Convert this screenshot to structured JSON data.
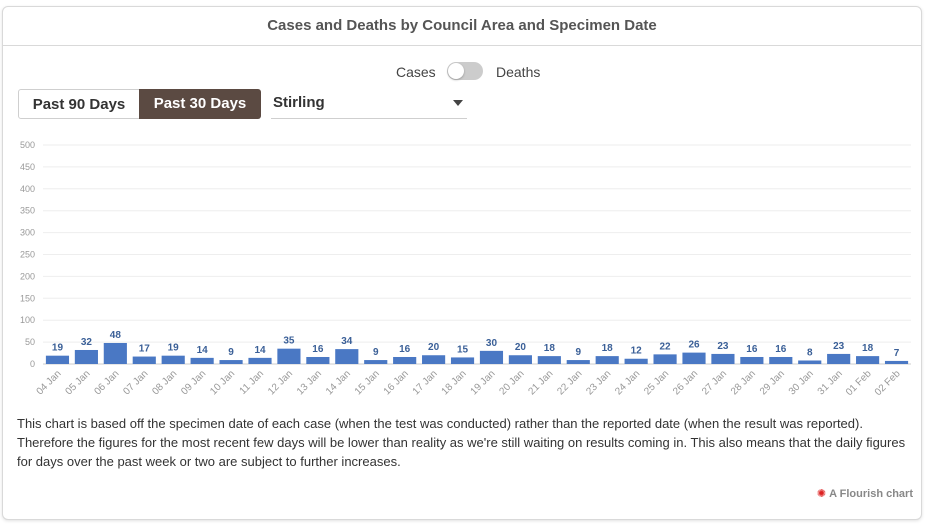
{
  "title": "Cases and Deaths by Council Area and Specimen Date",
  "toggle": {
    "left_label": "Cases",
    "right_label": "Deaths",
    "state": "off"
  },
  "buttons": {
    "past90": "Past 90 Days",
    "past30": "Past 30 Days",
    "active": "past30"
  },
  "dropdown": {
    "selected": "Stirling",
    "icon": "chevron-down-icon"
  },
  "chart_data": {
    "type": "bar",
    "title": "",
    "xlabel": "",
    "ylabel": "",
    "ylim": [
      0,
      500
    ],
    "yticks": [
      0,
      50,
      100,
      150,
      200,
      250,
      300,
      350,
      400,
      450,
      500
    ],
    "grid": true,
    "bar_color": "#4a78c4",
    "label_color": "#3a5f97",
    "categories": [
      "04 Jan",
      "05 Jan",
      "06 Jan",
      "07 Jan",
      "08 Jan",
      "09 Jan",
      "10 Jan",
      "11 Jan",
      "12 Jan",
      "13 Jan",
      "14 Jan",
      "15 Jan",
      "16 Jan",
      "17 Jan",
      "18 Jan",
      "19 Jan",
      "20 Jan",
      "21 Jan",
      "22 Jan",
      "23 Jan",
      "24 Jan",
      "25 Jan",
      "26 Jan",
      "27 Jan",
      "28 Jan",
      "29 Jan",
      "30 Jan",
      "31 Jan",
      "01 Feb",
      "02 Feb"
    ],
    "values": [
      19,
      32,
      48,
      17,
      19,
      14,
      9,
      14,
      35,
      16,
      34,
      9,
      16,
      20,
      15,
      30,
      20,
      18,
      9,
      18,
      12,
      22,
      26,
      23,
      16,
      16,
      8,
      23,
      18,
      7
    ]
  },
  "footnote": "This chart is based off the specimen date of each case (when the test was conducted) rather than the reported date (when the result was reported). Therefore the figures for the most recent few days will be lower than reality as we're still waiting on results coming in. This also means that the daily figures for days over the past week or two are subject to further increases.",
  "credit": {
    "icon": "flourish-logo-icon",
    "text": "A Flourish chart"
  }
}
